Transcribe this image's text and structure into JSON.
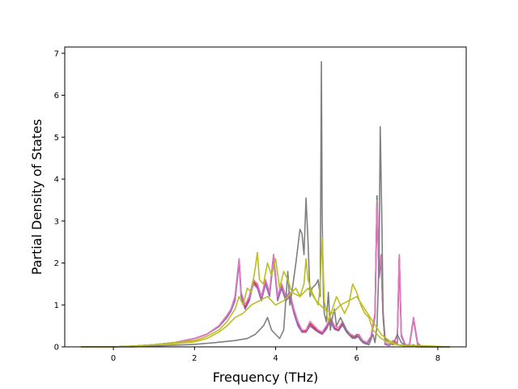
{
  "chart_data": {
    "type": "line",
    "xlabel": "Frequency (THz)",
    "ylabel": "Partial Density of States",
    "xlim": [
      -1.2,
      8.7
    ],
    "ylim": [
      0,
      7.15
    ],
    "xticks": [
      0,
      2,
      4,
      6,
      8
    ],
    "yticks": [
      0,
      1,
      2,
      3,
      4,
      5,
      6,
      7
    ],
    "grid": false,
    "colors": [
      "#2ca02c",
      "#d62728",
      "#9467bd",
      "#e377c2",
      "#7f7f7f",
      "#bcbd22"
    ],
    "series": [
      {
        "color": "#2ca02c",
        "x": [
          -0.8,
          0,
          0.5,
          1,
          1.5,
          2,
          2.3,
          2.6,
          2.8,
          2.9,
          3,
          3.1,
          3.15,
          3.25,
          3.35,
          3.45,
          3.55,
          3.65,
          3.75,
          3.85,
          3.95,
          4.05,
          4.15,
          4.25,
          4.35,
          4.45,
          4.55,
          4.65,
          4.75,
          4.85,
          4.95,
          5.05,
          5.15,
          5.25,
          5.35,
          5.45,
          5.55,
          5.65,
          5.75,
          5.85,
          5.95,
          6.05,
          6.15,
          6.25,
          6.35,
          6.45,
          6.5,
          6.55,
          6.6,
          6.65,
          6.7,
          6.8,
          6.9,
          7,
          7.05,
          7.1,
          7.2,
          7.3,
          7.4,
          7.45,
          7.5,
          7.6,
          8.3
        ],
        "y": [
          0,
          0,
          0.02,
          0.05,
          0.1,
          0.2,
          0.3,
          0.5,
          0.75,
          0.9,
          1.2,
          2.1,
          1.3,
          1.0,
          1.2,
          1.6,
          1.5,
          1.2,
          1.6,
          1.3,
          2.2,
          1.2,
          1.5,
          1.2,
          1.3,
          0.9,
          0.6,
          0.4,
          0.4,
          0.6,
          0.5,
          0.4,
          0.35,
          0.5,
          0.7,
          0.5,
          0.45,
          0.6,
          0.4,
          0.3,
          0.25,
          0.3,
          0.15,
          0.1,
          0.25,
          0.8,
          3.6,
          1.8,
          2.2,
          0.8,
          0.1,
          0.05,
          0.15,
          0.1,
          2.2,
          0.3,
          0.05,
          0.05,
          0.7,
          0.4,
          0.1,
          0,
          0
        ]
      },
      {
        "color": "#d62728",
        "x": [
          -0.8,
          0,
          0.5,
          1,
          1.5,
          2,
          2.3,
          2.6,
          2.8,
          2.9,
          3,
          3.1,
          3.15,
          3.25,
          3.35,
          3.45,
          3.55,
          3.65,
          3.75,
          3.85,
          3.95,
          4.05,
          4.15,
          4.25,
          4.35,
          4.45,
          4.55,
          4.65,
          4.75,
          4.85,
          4.95,
          5.05,
          5.15,
          5.25,
          5.35,
          5.45,
          5.55,
          5.65,
          5.75,
          5.85,
          5.95,
          6.05,
          6.15,
          6.25,
          6.35,
          6.45,
          6.5,
          6.55,
          6.6,
          6.65,
          6.7,
          6.8,
          6.9,
          7,
          7.05,
          7.1,
          7.2,
          7.3,
          7.4,
          7.45,
          7.5,
          7.6,
          8.3
        ],
        "y": [
          0,
          0,
          0.02,
          0.05,
          0.1,
          0.2,
          0.3,
          0.5,
          0.72,
          0.88,
          1.15,
          2.05,
          1.25,
          0.95,
          1.15,
          1.55,
          1.45,
          1.15,
          1.55,
          1.25,
          2.15,
          1.15,
          1.45,
          1.15,
          1.25,
          0.85,
          0.55,
          0.38,
          0.38,
          0.55,
          0.45,
          0.38,
          0.32,
          0.45,
          0.65,
          0.45,
          0.4,
          0.55,
          0.38,
          0.28,
          0.22,
          0.28,
          0.12,
          0.08,
          0.22,
          0.75,
          3.5,
          1.7,
          2.1,
          0.75,
          0.08,
          0.04,
          0.12,
          0.08,
          2.15,
          0.28,
          0.04,
          0.04,
          0.68,
          0.38,
          0.08,
          0,
          0
        ]
      },
      {
        "color": "#9467bd",
        "x": [
          -0.8,
          0,
          0.5,
          1,
          1.5,
          2,
          2.3,
          2.6,
          2.8,
          2.9,
          3,
          3.1,
          3.15,
          3.25,
          3.35,
          3.45,
          3.55,
          3.65,
          3.75,
          3.85,
          3.95,
          4.05,
          4.15,
          4.25,
          4.35,
          4.45,
          4.55,
          4.65,
          4.75,
          4.85,
          4.95,
          5.05,
          5.15,
          5.25,
          5.35,
          5.45,
          5.55,
          5.65,
          5.75,
          5.85,
          5.95,
          6.05,
          6.15,
          6.25,
          6.35,
          6.45,
          6.5,
          6.55,
          6.6,
          6.65,
          6.7,
          6.8,
          6.9,
          7,
          7.05,
          7.1,
          7.2,
          7.3,
          7.4,
          7.45,
          7.5,
          7.6,
          8.3
        ],
        "y": [
          0,
          0,
          0.02,
          0.05,
          0.1,
          0.2,
          0.3,
          0.48,
          0.7,
          0.85,
          1.1,
          2.0,
          1.2,
          0.9,
          1.1,
          1.5,
          1.4,
          1.1,
          1.5,
          1.2,
          2.1,
          1.1,
          1.4,
          1.1,
          1.2,
          0.8,
          0.5,
          0.35,
          0.35,
          0.5,
          0.42,
          0.35,
          0.3,
          0.42,
          0.62,
          0.42,
          0.38,
          0.52,
          0.35,
          0.25,
          0.2,
          0.25,
          0.1,
          0.06,
          0.2,
          0.72,
          3.4,
          1.65,
          2.05,
          0.72,
          0.06,
          0.03,
          0.1,
          0.06,
          2.1,
          0.25,
          0.03,
          0.03,
          0.65,
          0.35,
          0.06,
          0,
          0
        ]
      },
      {
        "color": "#e377c2",
        "x": [
          -0.8,
          0,
          0.5,
          1,
          1.5,
          2,
          2.3,
          2.6,
          2.8,
          2.9,
          3,
          3.1,
          3.15,
          3.25,
          3.35,
          3.45,
          3.55,
          3.65,
          3.75,
          3.85,
          3.95,
          4.05,
          4.15,
          4.25,
          4.35,
          4.45,
          4.55,
          4.65,
          4.75,
          4.85,
          4.95,
          5.05,
          5.15,
          5.25,
          5.35,
          5.45,
          5.55,
          5.65,
          5.75,
          5.85,
          5.95,
          6.05,
          6.15,
          6.25,
          6.35,
          6.45,
          6.5,
          6.55,
          6.6,
          6.65,
          6.7,
          6.8,
          6.9,
          7,
          7.05,
          7.1,
          7.2,
          7.3,
          7.4,
          7.45,
          7.5,
          7.6,
          8.3
        ],
        "y": [
          0,
          0,
          0.02,
          0.05,
          0.1,
          0.2,
          0.3,
          0.5,
          0.75,
          0.9,
          1.2,
          2.1,
          1.3,
          1.0,
          1.2,
          1.6,
          1.5,
          1.2,
          1.6,
          1.3,
          2.2,
          1.2,
          1.5,
          1.2,
          1.3,
          0.9,
          0.6,
          0.4,
          0.4,
          0.6,
          0.5,
          0.4,
          0.35,
          0.5,
          0.7,
          0.5,
          0.45,
          0.6,
          0.4,
          0.3,
          0.25,
          0.3,
          0.15,
          0.1,
          0.25,
          0.8,
          3.5,
          1.8,
          2.2,
          0.8,
          0.1,
          0.05,
          0.15,
          0.1,
          2.2,
          0.3,
          0.05,
          0.05,
          0.7,
          0.4,
          0.1,
          0,
          0
        ]
      },
      {
        "color": "#7f7f7f",
        "x": [
          -0.8,
          0,
          0.5,
          1,
          1.5,
          2,
          2.5,
          3,
          3.3,
          3.5,
          3.7,
          3.8,
          3.9,
          4,
          4.1,
          4.2,
          4.3,
          4.35,
          4.4,
          4.5,
          4.6,
          4.65,
          4.7,
          4.75,
          4.8,
          4.85,
          4.9,
          5,
          5.05,
          5.1,
          5.13,
          5.15,
          5.18,
          5.2,
          5.25,
          5.3,
          5.35,
          5.4,
          5.45,
          5.5,
          5.6,
          5.7,
          5.8,
          5.9,
          6,
          6.1,
          6.2,
          6.3,
          6.4,
          6.45,
          6.5,
          6.55,
          6.58,
          6.62,
          6.65,
          6.7,
          6.8,
          6.9,
          7,
          7.1,
          7.2,
          7.3,
          7.4,
          7.5,
          8.3
        ],
        "y": [
          0,
          0,
          0,
          0.02,
          0.04,
          0.06,
          0.1,
          0.15,
          0.2,
          0.3,
          0.5,
          0.7,
          0.4,
          0.3,
          0.2,
          0.4,
          1.8,
          1.0,
          1.3,
          2.0,
          2.8,
          2.7,
          2.2,
          3.55,
          2.5,
          1.2,
          1.4,
          1.5,
          1.6,
          1.2,
          6.8,
          3.0,
          1.2,
          0.8,
          0.6,
          1.3,
          0.4,
          0.7,
          0.9,
          0.5,
          0.7,
          0.5,
          0.3,
          0.2,
          0.3,
          0.15,
          0.1,
          0.05,
          0.3,
          0.1,
          0.5,
          2.0,
          5.25,
          3.0,
          0.8,
          0.2,
          0.1,
          0.05,
          0.3,
          0.1,
          0.05,
          0.02,
          0.05,
          0,
          0
        ]
      },
      {
        "color": "#bcbd22",
        "x": [
          -0.8,
          0,
          0.5,
          1,
          1.5,
          2,
          2.3,
          2.6,
          2.8,
          3,
          3.1,
          3.2,
          3.3,
          3.4,
          3.5,
          3.55,
          3.6,
          3.7,
          3.8,
          3.9,
          4,
          4.1,
          4.2,
          4.3,
          4.4,
          4.5,
          4.6,
          4.7,
          4.75,
          4.8,
          4.9,
          5,
          5.05,
          5.1,
          5.15,
          5.2,
          5.3,
          5.4,
          5.5,
          5.6,
          5.7,
          5.8,
          5.9,
          6,
          6.1,
          6.2,
          6.3,
          6.4,
          6.5,
          6.6,
          6.8,
          7,
          7.2,
          7.4,
          7.6,
          8.3
        ],
        "y": [
          0,
          0,
          0.02,
          0.05,
          0.1,
          0.15,
          0.25,
          0.4,
          0.6,
          0.9,
          1.2,
          1.0,
          1.4,
          1.3,
          1.9,
          2.25,
          1.6,
          1.5,
          2.0,
          1.7,
          2.1,
          1.4,
          1.8,
          1.6,
          1.3,
          1.4,
          1.2,
          1.5,
          2.1,
          1.6,
          1.3,
          1.1,
          1.0,
          1.5,
          2.6,
          1.1,
          0.6,
          0.9,
          1.2,
          1.0,
          0.8,
          1.0,
          1.5,
          1.3,
          1.0,
          0.8,
          0.7,
          0.4,
          0.3,
          0.2,
          0.1,
          0.05,
          0.02,
          0.01,
          0,
          0
        ]
      },
      {
        "color": "#bcbd22",
        "x": [
          -0.8,
          0,
          0.5,
          1,
          1.5,
          2,
          2.3,
          2.6,
          2.8,
          3,
          3.2,
          3.4,
          3.6,
          3.8,
          4,
          4.2,
          4.4,
          4.6,
          4.8,
          5,
          5.2,
          5.4,
          5.6,
          5.8,
          6,
          6.2,
          6.4,
          6.6,
          6.8,
          7,
          8.3
        ],
        "y": [
          0,
          0,
          0.02,
          0.05,
          0.08,
          0.12,
          0.2,
          0.35,
          0.5,
          0.7,
          0.8,
          1.0,
          1.1,
          1.2,
          1.0,
          1.1,
          1.3,
          1.2,
          1.4,
          1.1,
          0.9,
          0.8,
          1.0,
          1.1,
          1.2,
          0.9,
          0.6,
          0.3,
          0.15,
          0.05,
          0
        ]
      }
    ]
  }
}
